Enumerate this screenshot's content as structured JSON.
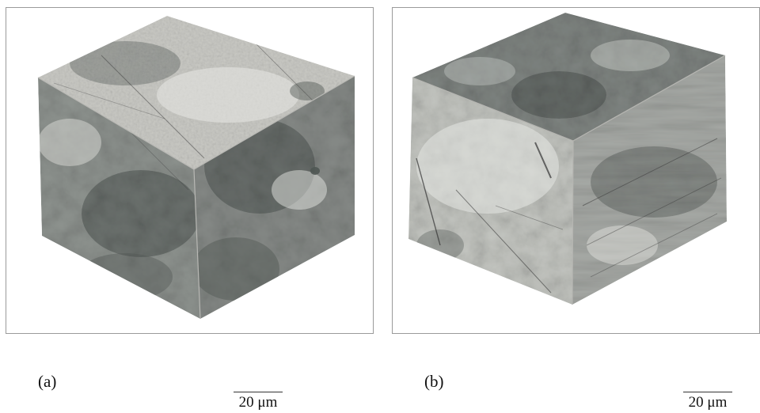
{
  "panels": [
    {
      "caption": "(a)",
      "scale_label": "20 μm",
      "face_tones": {
        "top": "#c9c9c4",
        "left": "#8e938f",
        "right": "#868a87"
      },
      "dark_patch": "#4f5653",
      "light_patch": "#e4e5e1",
      "line_color": "#3c3c3c"
    },
    {
      "caption": "(b)",
      "scale_label": "20 μm",
      "face_tones": {
        "top": "#7f8481",
        "left": "#c4c6c1",
        "right": "#a7aaa6"
      },
      "dark_patch": "#505653",
      "light_patch": "#e6e7e3",
      "line_color": "#333333"
    }
  ]
}
